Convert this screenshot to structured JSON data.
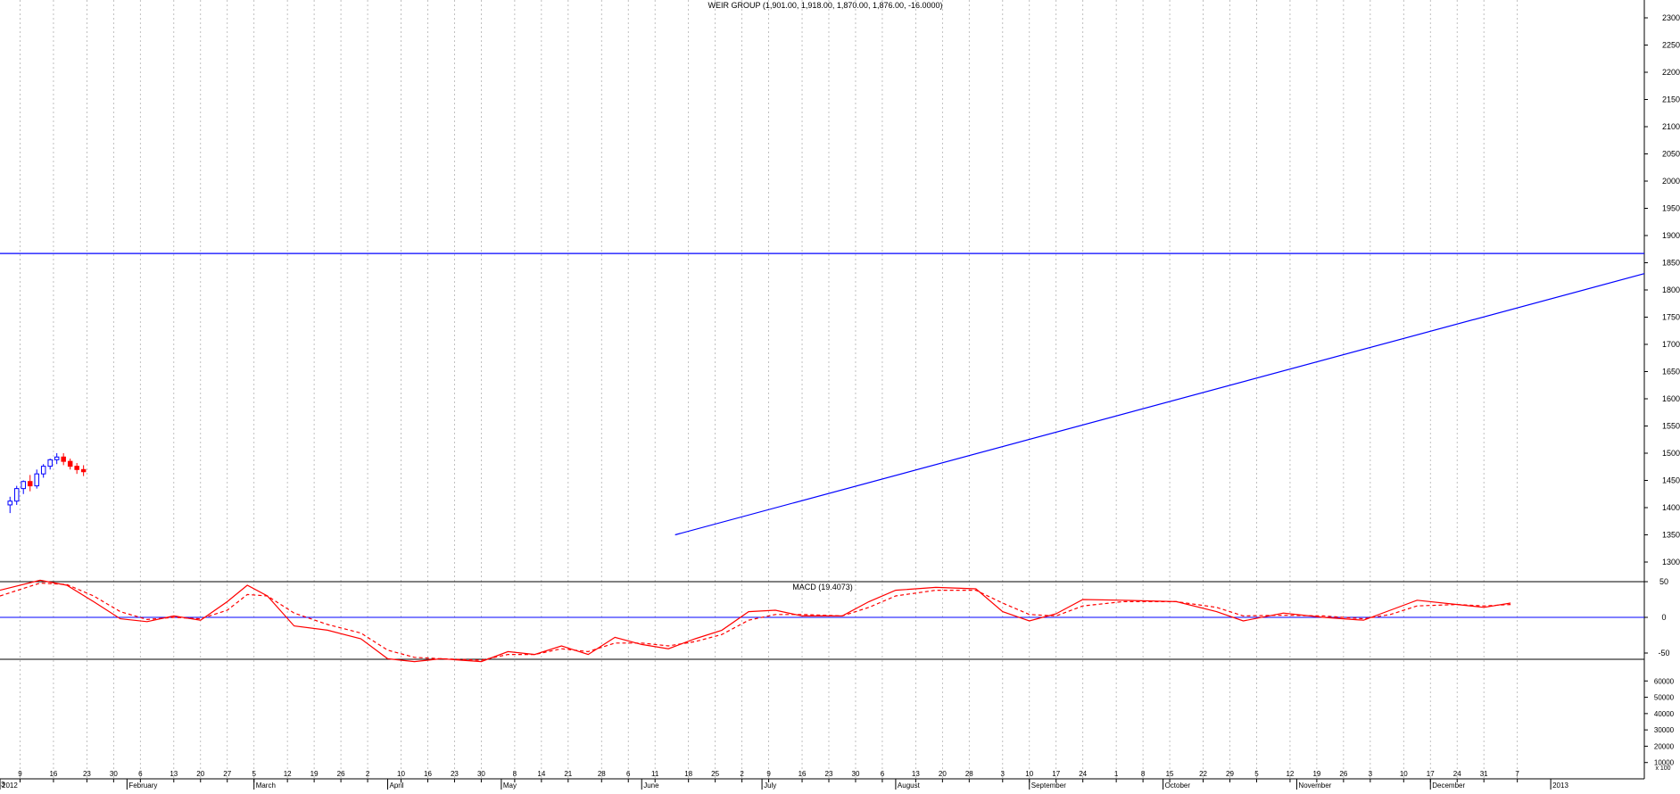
{
  "chart_data": [
    {
      "type": "candlestick",
      "title": "WEIR GROUP (1,901.00, 1,918.00, 1,870.00, 1,876.00, -16.0000)",
      "ylim": [
        1260,
        2300
      ],
      "yticks": [
        1300,
        1350,
        1400,
        1450,
        1500,
        1550,
        1600,
        1650,
        1700,
        1750,
        1800,
        1850,
        1900,
        1950,
        2000,
        2050,
        2100,
        2150,
        2200,
        2250,
        2300
      ],
      "x_range": [
        0,
        246
      ],
      "colors": {
        "up": "#0000ff",
        "down": "#ff0000"
      },
      "grid": true,
      "lines": [
        {
          "name": "resistance",
          "kind": "horizontal",
          "y": 1867
        },
        {
          "name": "support-trend",
          "kind": "trend",
          "x1": 101,
          "y1": 1350,
          "x2": 246,
          "y2": 1830
        }
      ],
      "candles": [
        [
          1.5,
          1405,
          1420,
          1390,
          1412
        ],
        [
          2.5,
          1412,
          1440,
          1405,
          1435
        ],
        [
          3.5,
          1435,
          1450,
          1425,
          1448
        ],
        [
          4.5,
          1448,
          1460,
          1430,
          1440
        ],
        [
          5.5,
          1440,
          1470,
          1435,
          1462
        ],
        [
          6.5,
          1462,
          1480,
          1455,
          1476
        ],
        [
          7.5,
          1476,
          1490,
          1470,
          1488
        ],
        [
          8.5,
          1488,
          1500,
          1480,
          1493
        ],
        [
          9.5,
          1493,
          1500,
          1478,
          1485
        ],
        [
          10.5,
          1485,
          1490,
          1470,
          1476
        ],
        [
          11.5,
          1476,
          1482,
          1462,
          1470
        ],
        [
          12.5,
          1470,
          1478,
          1458,
          1466
        ]
      ]
    },
    {
      "type": "line",
      "title": "MACD (19.4073)",
      "ylim": [
        -88,
        68
      ],
      "yticks": [
        -50,
        0,
        50
      ],
      "series": [
        {
          "name": "MACD",
          "color": "#ff0000",
          "dash": false,
          "values": [
            [
              0,
              38
            ],
            [
              6,
              52
            ],
            [
              10,
              45
            ],
            [
              14,
              22
            ],
            [
              18,
              -2
            ],
            [
              22,
              -6
            ],
            [
              26,
              2
            ],
            [
              30,
              -4
            ],
            [
              34,
              22
            ],
            [
              37,
              45
            ],
            [
              40,
              30
            ],
            [
              44,
              -12
            ],
            [
              49,
              -18
            ],
            [
              54,
              -30
            ],
            [
              58,
              -58
            ],
            [
              62,
              -62
            ],
            [
              66,
              -58
            ],
            [
              72,
              -62
            ],
            [
              76,
              -48
            ],
            [
              80,
              -52
            ],
            [
              84,
              -40
            ],
            [
              88,
              -52
            ],
            [
              92,
              -28
            ],
            [
              96,
              -38
            ],
            [
              100,
              -44
            ],
            [
              104,
              -30
            ],
            [
              108,
              -18
            ],
            [
              112,
              8
            ],
            [
              116,
              10
            ],
            [
              120,
              2
            ],
            [
              126,
              2
            ],
            [
              130,
              22
            ],
            [
              134,
              38
            ],
            [
              140,
              42
            ],
            [
              146,
              40
            ],
            [
              150,
              8
            ],
            [
              154,
              -5
            ],
            [
              158,
              5
            ],
            [
              162,
              25
            ],
            [
              168,
              24
            ],
            [
              176,
              22
            ],
            [
              182,
              8
            ],
            [
              186,
              -5
            ],
            [
              192,
              6
            ],
            [
              198,
              0
            ],
            [
              204,
              -4
            ],
            [
              208,
              10
            ],
            [
              212,
              24
            ],
            [
              218,
              18
            ],
            [
              222,
              14
            ],
            [
              226,
              20
            ]
          ]
        },
        {
          "name": "Signal",
          "color": "#ff0000",
          "dash": true,
          "values": [
            [
              0,
              30
            ],
            [
              6,
              48
            ],
            [
              10,
              46
            ],
            [
              14,
              30
            ],
            [
              18,
              8
            ],
            [
              22,
              -3
            ],
            [
              26,
              0
            ],
            [
              30,
              -2
            ],
            [
              34,
              10
            ],
            [
              37,
              32
            ],
            [
              40,
              30
            ],
            [
              44,
              6
            ],
            [
              49,
              -10
            ],
            [
              54,
              -22
            ],
            [
              58,
              -46
            ],
            [
              62,
              -56
            ],
            [
              66,
              -58
            ],
            [
              72,
              -60
            ],
            [
              76,
              -52
            ],
            [
              80,
              -52
            ],
            [
              84,
              -44
            ],
            [
              88,
              -48
            ],
            [
              92,
              -36
            ],
            [
              96,
              -36
            ],
            [
              100,
              -40
            ],
            [
              104,
              -34
            ],
            [
              108,
              -24
            ],
            [
              112,
              -4
            ],
            [
              116,
              4
            ],
            [
              120,
              4
            ],
            [
              126,
              2
            ],
            [
              130,
              14
            ],
            [
              134,
              30
            ],
            [
              140,
              38
            ],
            [
              146,
              38
            ],
            [
              150,
              20
            ],
            [
              154,
              4
            ],
            [
              158,
              2
            ],
            [
              162,
              16
            ],
            [
              168,
              22
            ],
            [
              176,
              22
            ],
            [
              182,
              14
            ],
            [
              186,
              2
            ],
            [
              192,
              3
            ],
            [
              198,
              2
            ],
            [
              204,
              -2
            ],
            [
              208,
              4
            ],
            [
              212,
              16
            ],
            [
              218,
              18
            ],
            [
              222,
              16
            ],
            [
              226,
              18
            ]
          ]
        }
      ]
    },
    {
      "type": "bar",
      "title": "",
      "ylim": [
        0,
        70000
      ],
      "yticks": [
        10000,
        20000,
        30000,
        40000,
        50000,
        60000
      ],
      "color": "#0000ff",
      "values": []
    }
  ],
  "x_axis": {
    "day_ticks": [
      {
        "label": "9",
        "x": 3
      },
      {
        "label": "16",
        "x": 8
      },
      {
        "label": "23",
        "x": 13
      },
      {
        "label": "30",
        "x": 17
      },
      {
        "label": "6",
        "x": 21
      },
      {
        "label": "13",
        "x": 26
      },
      {
        "label": "20",
        "x": 30
      },
      {
        "label": "27",
        "x": 34
      },
      {
        "label": "5",
        "x": 38
      },
      {
        "label": "12",
        "x": 43
      },
      {
        "label": "19",
        "x": 47
      },
      {
        "label": "26",
        "x": 51
      },
      {
        "label": "2",
        "x": 55
      },
      {
        "label": "10",
        "x": 60
      },
      {
        "label": "16",
        "x": 64
      },
      {
        "label": "23",
        "x": 68
      },
      {
        "label": "30",
        "x": 72
      },
      {
        "label": "8",
        "x": 77
      },
      {
        "label": "14",
        "x": 81
      },
      {
        "label": "21",
        "x": 85
      },
      {
        "label": "28",
        "x": 90
      },
      {
        "label": "6",
        "x": 94
      },
      {
        "label": "11",
        "x": 98
      },
      {
        "label": "18",
        "x": 103
      },
      {
        "label": "25",
        "x": 107
      },
      {
        "label": "2",
        "x": 111
      },
      {
        "label": "9",
        "x": 115
      },
      {
        "label": "16",
        "x": 120
      },
      {
        "label": "23",
        "x": 124
      },
      {
        "label": "30",
        "x": 128
      },
      {
        "label": "6",
        "x": 132
      },
      {
        "label": "13",
        "x": 137
      },
      {
        "label": "20",
        "x": 141
      },
      {
        "label": "28",
        "x": 145
      },
      {
        "label": "3",
        "x": 150
      },
      {
        "label": "10",
        "x": 154
      },
      {
        "label": "17",
        "x": 158
      },
      {
        "label": "24",
        "x": 162
      },
      {
        "label": "1",
        "x": 167
      },
      {
        "label": "8",
        "x": 171
      },
      {
        "label": "15",
        "x": 175
      },
      {
        "label": "22",
        "x": 180
      },
      {
        "label": "29",
        "x": 184
      },
      {
        "label": "5",
        "x": 188
      },
      {
        "label": "12",
        "x": 193
      },
      {
        "label": "19",
        "x": 197
      },
      {
        "label": "26",
        "x": 201
      },
      {
        "label": "3",
        "x": 205
      },
      {
        "label": "10",
        "x": 210
      },
      {
        "label": "17",
        "x": 214
      },
      {
        "label": "24",
        "x": 218
      },
      {
        "label": "31",
        "x": 222
      },
      {
        "label": "7",
        "x": 227
      }
    ],
    "month_ticks": [
      {
        "label": "2012",
        "x": 0
      },
      {
        "label": "February",
        "x": 19
      },
      {
        "label": "March",
        "x": 38
      },
      {
        "label": "April",
        "x": 58
      },
      {
        "label": "May",
        "x": 75
      },
      {
        "label": "June",
        "x": 96
      },
      {
        "label": "July",
        "x": 114
      },
      {
        "label": "August",
        "x": 134
      },
      {
        "label": "September",
        "x": 154
      },
      {
        "label": "October",
        "x": 174
      },
      {
        "label": "November",
        "x": 194
      },
      {
        "label": "December",
        "x": 214
      },
      {
        "label": "2013",
        "x": 232
      }
    ],
    "start_label": "3"
  },
  "volume_unit_label": "x 100"
}
